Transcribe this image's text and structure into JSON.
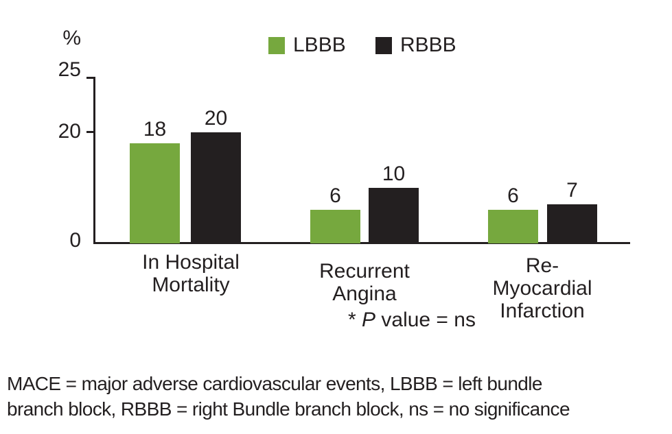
{
  "page": {
    "background": "#ffffff"
  },
  "y_axis": {
    "unit_label": "%",
    "tick_25": "25",
    "tick_20": "20",
    "tick_0": "0"
  },
  "legend": {
    "items": [
      {
        "label": "LBBB",
        "color": "#76a83e"
      },
      {
        "label": "RBBB",
        "color": "#231f20"
      }
    ]
  },
  "chart_data": {
    "type": "bar",
    "categories": [
      "In Hospital Mortality",
      "Recurrent Angina",
      "Re-Myocardial Infarction"
    ],
    "categories_lines": [
      [
        "In Hospital",
        "Mortality"
      ],
      [
        "Recurrent",
        "Angina"
      ],
      [
        "Re-",
        "Myocardial",
        "Infarction"
      ]
    ],
    "series": [
      {
        "name": "LBBB",
        "color": "#76a83e",
        "values": [
          18,
          6,
          6
        ]
      },
      {
        "name": "RBBB",
        "color": "#231f20",
        "values": [
          20,
          10,
          7
        ]
      }
    ],
    "title": "",
    "xlabel": "",
    "ylabel": "%",
    "ylim": [
      0,
      25
    ],
    "yticks_shown": [
      0,
      20,
      25
    ],
    "grid": false,
    "legend_position": "top-center",
    "annotation": "* P value = ns"
  },
  "annotation": {
    "prefix": "* ",
    "p": "P",
    "suffix": " value = ns"
  },
  "footnote": {
    "line1": "MACE = major adverse cardiovascular events, LBBB = left bundle",
    "line2": "branch block, RBBB = right Bundle branch block, ns = no significance"
  }
}
